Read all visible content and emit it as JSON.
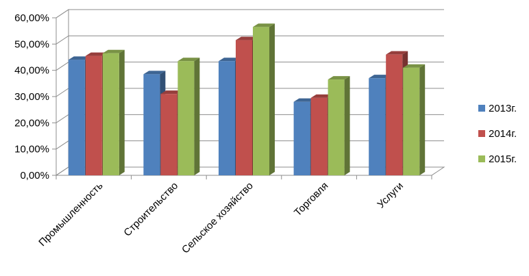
{
  "chart_data": {
    "type": "bar",
    "categories": [
      "Промышленность",
      "Строительство",
      "Сельское хозяйство",
      "Торговля",
      "Услуги"
    ],
    "series": [
      {
        "name": "2013г.",
        "color": "#4F81BD",
        "values": [
          44,
          38.5,
          43.5,
          28,
          37
        ]
      },
      {
        "name": "2014г.",
        "color": "#C0504D",
        "values": [
          45.5,
          31,
          51.5,
          29.5,
          46
        ]
      },
      {
        "name": "2015г.",
        "color": "#9BBB59",
        "values": [
          46.5,
          43.5,
          56.5,
          36.5,
          41
        ]
      }
    ],
    "yticks": [
      "0,00%",
      "10,00%",
      "20,00%",
      "30,00%",
      "40,00%",
      "50,00%",
      "60,00%"
    ],
    "ylim": [
      0,
      60
    ],
    "grid": true,
    "legend_position": "right",
    "title": "",
    "xlabel": "",
    "ylabel": ""
  }
}
